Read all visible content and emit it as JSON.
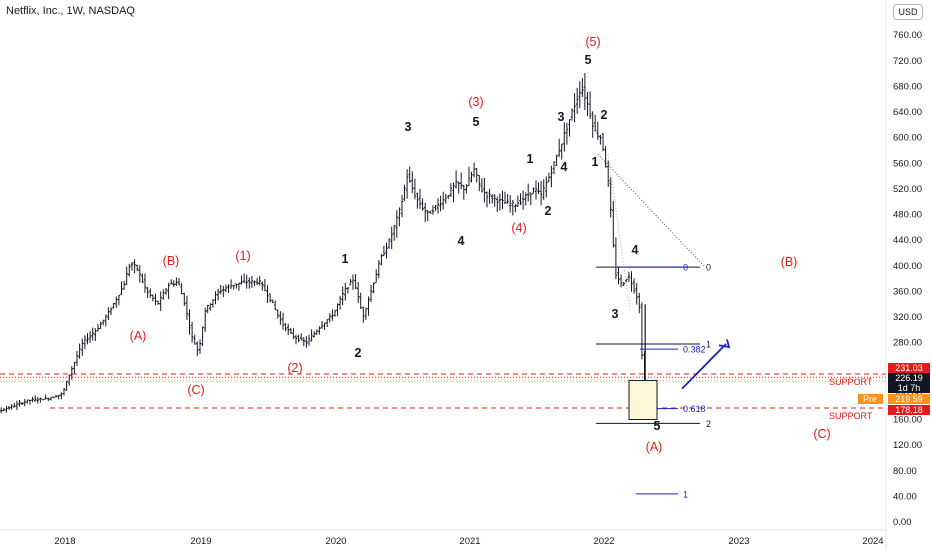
{
  "header": {
    "title": "Netflix, Inc., 1W, NASDAQ",
    "currency": "USD"
  },
  "colors": {
    "red": "#e31b1b",
    "blue": "#1e22c8",
    "orange": "#f7931a",
    "candle": "#131722",
    "axis_text": "#131722"
  },
  "chart_data": {
    "type": "candlestick",
    "title": "Netflix, Inc., 1W, NASDAQ",
    "xlabel": "",
    "ylabel": "",
    "ylim": [
      0,
      800
    ],
    "x_ticks": [
      "2018",
      "2019",
      "2020",
      "2021",
      "2022",
      "2023",
      "2024"
    ],
    "y_ticks": [
      "0.00",
      "40.00",
      "80.00",
      "120.00",
      "160.00",
      "200.00",
      "240.00",
      "280.00",
      "320.00",
      "360.00",
      "400.00",
      "440.00",
      "480.00",
      "520.00",
      "560.00",
      "600.00",
      "640.00",
      "680.00",
      "720.00",
      "760.00"
    ],
    "grid": false,
    "price_path": [
      [
        2017.3,
        160
      ],
      [
        2017.45,
        168
      ],
      [
        2017.6,
        178
      ],
      [
        2017.75,
        190
      ],
      [
        2017.9,
        193
      ],
      [
        2018.0,
        200
      ],
      [
        2018.05,
        230
      ],
      [
        2018.15,
        280
      ],
      [
        2018.25,
        300
      ],
      [
        2018.35,
        330
      ],
      [
        2018.45,
        370
      ],
      [
        2018.5,
        405
      ],
      [
        2018.55,
        395
      ],
      [
        2018.62,
        360
      ],
      [
        2018.7,
        340
      ],
      [
        2018.78,
        370
      ],
      [
        2018.85,
        375
      ],
      [
        2018.9,
        340
      ],
      [
        2018.95,
        290
      ],
      [
        2019.0,
        265
      ],
      [
        2019.05,
        330
      ],
      [
        2019.15,
        360
      ],
      [
        2019.25,
        370
      ],
      [
        2019.35,
        375
      ],
      [
        2019.45,
        375
      ],
      [
        2019.5,
        360
      ],
      [
        2019.55,
        340
      ],
      [
        2019.62,
        310
      ],
      [
        2019.7,
        290
      ],
      [
        2019.8,
        280
      ],
      [
        2019.9,
        305
      ],
      [
        2020.0,
        325
      ],
      [
        2020.08,
        360
      ],
      [
        2020.15,
        380
      ],
      [
        2020.22,
        320
      ],
      [
        2020.28,
        360
      ],
      [
        2020.35,
        410
      ],
      [
        2020.42,
        440
      ],
      [
        2020.5,
        490
      ],
      [
        2020.55,
        540
      ],
      [
        2020.62,
        505
      ],
      [
        2020.7,
        480
      ],
      [
        2020.78,
        495
      ],
      [
        2020.85,
        510
      ],
      [
        2020.92,
        530
      ],
      [
        2020.98,
        520
      ],
      [
        2021.05,
        550
      ],
      [
        2021.1,
        520
      ],
      [
        2021.15,
        510
      ],
      [
        2021.25,
        500
      ],
      [
        2021.35,
        495
      ],
      [
        2021.42,
        505
      ],
      [
        2021.5,
        520
      ],
      [
        2021.55,
        510
      ],
      [
        2021.62,
        545
      ],
      [
        2021.7,
        590
      ],
      [
        2021.78,
        640
      ],
      [
        2021.85,
        680
      ],
      [
        2021.9,
        650
      ],
      [
        2021.95,
        610
      ],
      [
        2022.0,
        600
      ],
      [
        2022.05,
        530
      ],
      [
        2022.08,
        460
      ],
      [
        2022.1,
        390
      ],
      [
        2022.15,
        370
      ],
      [
        2022.2,
        385
      ],
      [
        2022.25,
        360
      ],
      [
        2022.28,
        340
      ],
      [
        2022.31,
        220
      ]
    ],
    "wave_labels": {
      "red": [
        "(A)",
        "(B)",
        "(C)",
        "(1)",
        "(2)",
        "(3)",
        "(4)",
        "(5)",
        "(A)",
        "(B)",
        "(C)"
      ],
      "black": [
        "1",
        "2",
        "3",
        "4",
        "5",
        "1",
        "2",
        "3",
        "4",
        "5",
        "1",
        "2",
        "3",
        "4",
        "5"
      ]
    },
    "fib_levels": [
      {
        "label": "0",
        "price": 398
      },
      {
        "label": "1",
        "price": 278
      },
      {
        "label": "0.382",
        "price": 270
      },
      {
        "label": "0.618",
        "price": 177
      },
      {
        "label": "2",
        "price": 154
      },
      {
        "label": "1",
        "price": 44
      }
    ],
    "support_lines": [
      {
        "label": "SUPPORT",
        "price": 231
      },
      {
        "label": "SUPPORT",
        "price": 178
      }
    ],
    "price_tags": [
      {
        "label": "231.03"
      },
      {
        "label": "226.19"
      },
      {
        "label": "1d 7h"
      },
      {
        "label": "Pre"
      },
      {
        "label": "219.59"
      },
      {
        "label": "178.18"
      }
    ]
  }
}
